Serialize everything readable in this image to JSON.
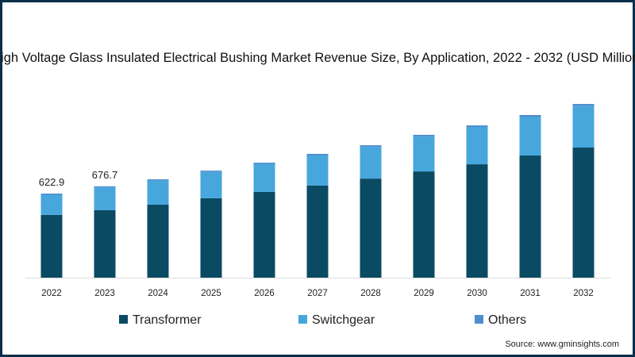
{
  "chart_data": {
    "type": "bar",
    "stacked": true,
    "title": "High Voltage Glass Insulated Electrical Bushing Market Revenue Size, By Application, 2022 - 2032 (USD Million)",
    "xlabel": "",
    "ylabel": "",
    "categories": [
      "2022",
      "2023",
      "2024",
      "2025",
      "2026",
      "2027",
      "2028",
      "2029",
      "2030",
      "2031",
      "2032"
    ],
    "series": [
      {
        "name": "Transformer",
        "color": "#0b4a63",
        "values": [
          465,
          500,
          541,
          588,
          635,
          682,
          734,
          787,
          840,
          905,
          964
        ]
      },
      {
        "name": "Switchgear",
        "color": "#47a7dd",
        "values": [
          149,
          168,
          178,
          195,
          206,
          223,
          235,
          258,
          274,
          285,
          307
        ]
      },
      {
        "name": "Others",
        "color": "#4d8fcf",
        "values": [
          9,
          9,
          10,
          10,
          11,
          12,
          12,
          13,
          14,
          15,
          16
        ]
      }
    ],
    "data_labels": [
      {
        "category": "2022",
        "text": "622.9"
      },
      {
        "category": "2023",
        "text": "676.7"
      }
    ],
    "ylim": [
      0,
      1350
    ],
    "grid": false,
    "legend_position": "bottom",
    "source": "Source: www.gminsights.com"
  }
}
